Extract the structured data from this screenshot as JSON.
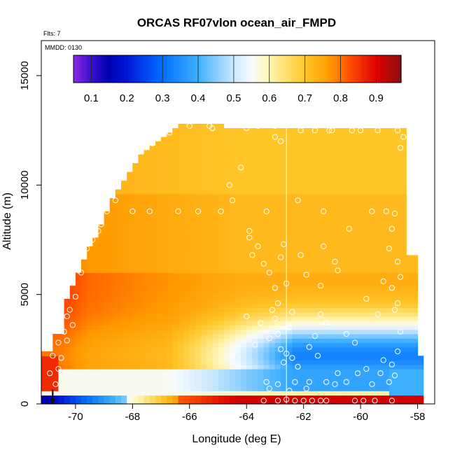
{
  "chart_data": {
    "type": "heatmap",
    "title": "ORCAS RF07vlon ocean_air_FMPD",
    "xlabel": "Longitude (deg E)",
    "ylabel": "Altitude (m)",
    "note_flights": "Flts: 7",
    "note_date": "MMDD: 0130",
    "xlim": [
      -71.2,
      -57.4
    ],
    "ylim": [
      0,
      16600
    ],
    "x_ticks": [
      -70,
      -68,
      -66,
      -64,
      -62,
      -60,
      -58
    ],
    "x_tick_labels": [
      "-70",
      "-68",
      "-66",
      "-64",
      "-62",
      "-60",
      "-58"
    ],
    "y_ticks": [
      0,
      5000,
      10000,
      15000
    ],
    "y_tick_labels": [
      "0",
      "5000",
      "10000",
      "15000"
    ],
    "colorbar": {
      "range": [
        0.05,
        0.97
      ],
      "ticks": [
        0.1,
        0.2,
        0.3,
        0.4,
        0.5,
        0.6,
        0.7,
        0.8,
        0.9
      ],
      "tick_labels": [
        "0.1",
        "0.2",
        "0.3",
        "0.4",
        "0.5",
        "0.6",
        "0.7",
        "0.8",
        "0.9"
      ],
      "stops": [
        {
          "v": 0.05,
          "c": "#8a2be2"
        },
        {
          "v": 0.1,
          "c": "#3a0fd0"
        },
        {
          "v": 0.15,
          "c": "#0000b0"
        },
        {
          "v": 0.2,
          "c": "#0018d8"
        },
        {
          "v": 0.3,
          "c": "#0070ff"
        },
        {
          "v": 0.4,
          "c": "#3fb0ff"
        },
        {
          "v": 0.5,
          "c": "#cce8ff"
        },
        {
          "v": 0.55,
          "c": "#f8fbff"
        },
        {
          "v": 0.6,
          "c": "#fff5b0"
        },
        {
          "v": 0.7,
          "c": "#ffc628"
        },
        {
          "v": 0.77,
          "c": "#ff9a00"
        },
        {
          "v": 0.83,
          "c": "#ff4a00"
        },
        {
          "v": 0.9,
          "c": "#e00000"
        },
        {
          "v": 0.97,
          "c": "#8b0f0f"
        }
      ]
    },
    "vertical_line_x": -62.6,
    "arrow_x": -70.8,
    "field_description": "Gridded FMPD values; warmer (0.75-0.85) toward west and mid-altitudes, ~0.7 aloft, white/blue (0.3-0.55) low over east, red (~0.9) near surface east of -66",
    "observation_points": [
      [
        -69.8,
        6000
      ],
      [
        -69.9,
        6100
      ],
      [
        -70.0,
        4900
      ],
      [
        -70.2,
        4300
      ],
      [
        -70.3,
        4000
      ],
      [
        -70.1,
        3600
      ],
      [
        -70.4,
        3300
      ],
      [
        -70.6,
        2800
      ],
      [
        -70.3,
        2900
      ],
      [
        -70.8,
        2200
      ],
      [
        -70.5,
        2100
      ],
      [
        -70.6,
        1600
      ],
      [
        -70.9,
        1400
      ],
      [
        -70.7,
        900
      ],
      [
        -69.6,
        7100
      ],
      [
        -69.4,
        7500
      ],
      [
        -69.2,
        7900
      ],
      [
        -69.1,
        8200
      ],
      [
        -68.9,
        8800
      ],
      [
        -68.6,
        9300
      ],
      [
        -68.2,
        10800
      ],
      [
        -67.6,
        12200
      ],
      [
        -67.3,
        11900
      ],
      [
        -66.0,
        12700
      ],
      [
        -65.3,
        12700
      ],
      [
        -64.2,
        10800
      ],
      [
        -63.6,
        12700
      ],
      [
        -63.0,
        12700
      ],
      [
        -62.1,
        12500
      ],
      [
        -61.6,
        12500
      ],
      [
        -61.0,
        12500
      ],
      [
        -60.3,
        12500
      ],
      [
        -59.4,
        12500
      ],
      [
        -58.7,
        12500
      ],
      [
        -58.5,
        12200
      ],
      [
        -58.6,
        11700
      ],
      [
        -62.8,
        12000
      ],
      [
        -68.0,
        8800
      ],
      [
        -67.4,
        8800
      ],
      [
        -66.4,
        8800
      ],
      [
        -65.7,
        8800
      ],
      [
        -64.9,
        8800
      ],
      [
        -64.5,
        9300
      ],
      [
        -63.3,
        8800
      ],
      [
        -62.2,
        9300
      ],
      [
        -61.3,
        8800
      ],
      [
        -60.4,
        8000
      ],
      [
        -59.6,
        8800
      ],
      [
        -59.1,
        8800
      ],
      [
        -58.8,
        8700
      ],
      [
        -58.9,
        8000
      ],
      [
        -59.0,
        7100
      ],
      [
        -60.8,
        6100
      ],
      [
        -60.9,
        6500
      ],
      [
        -61.3,
        7200
      ],
      [
        -63.9,
        7600
      ],
      [
        -63.9,
        7900
      ],
      [
        -63.4,
        6400
      ],
      [
        -63.2,
        6000
      ],
      [
        -63.0,
        5300
      ],
      [
        -62.8,
        6700
      ],
      [
        -62.7,
        7300
      ],
      [
        -63.6,
        7200
      ],
      [
        -63.8,
        6800
      ],
      [
        -62.9,
        4600
      ],
      [
        -63.1,
        4300
      ],
      [
        -63.0,
        3900
      ],
      [
        -62.5,
        3500
      ],
      [
        -62.9,
        3200
      ],
      [
        -62.8,
        2500
      ],
      [
        -62.6,
        2300
      ],
      [
        -62.7,
        1900
      ],
      [
        -62.4,
        2100
      ],
      [
        -62.2,
        1700
      ],
      [
        -61.8,
        2600
      ],
      [
        -61.6,
        3100
      ],
      [
        -61.4,
        4100
      ],
      [
        -61.2,
        3700
      ],
      [
        -61.5,
        2200
      ],
      [
        -60.8,
        1400
      ],
      [
        -60.5,
        1000
      ],
      [
        -60.1,
        1400
      ],
      [
        -59.6,
        900
      ],
      [
        -59.3,
        1400
      ],
      [
        -59.0,
        1000
      ],
      [
        -58.8,
        1300
      ],
      [
        -58.9,
        1800
      ],
      [
        -58.7,
        2400
      ],
      [
        -58.6,
        3300
      ],
      [
        -58.8,
        4300
      ],
      [
        -58.7,
        4600
      ],
      [
        -58.9,
        5300
      ],
      [
        -58.6,
        5800
      ],
      [
        -58.7,
        6500
      ],
      [
        -63.3,
        1000
      ],
      [
        -62.9,
        900
      ],
      [
        -62.3,
        1000
      ],
      [
        -61.8,
        1000
      ],
      [
        -61.2,
        1000
      ],
      [
        -60.9,
        900
      ],
      [
        -62.6,
        200
      ],
      [
        -62.3,
        150
      ],
      [
        -62.0,
        150
      ],
      [
        -61.7,
        150
      ],
      [
        -61.4,
        150
      ],
      [
        -61.2,
        150
      ],
      [
        -60.2,
        150
      ],
      [
        -59.9,
        150
      ],
      [
        -59.5,
        150
      ],
      [
        -58.9,
        150
      ],
      [
        -62.9,
        150
      ],
      [
        -63.4,
        150
      ],
      [
        -63.2,
        700
      ],
      [
        -62.5,
        600
      ],
      [
        -61.9,
        700
      ],
      [
        -60.5,
        3200
      ],
      [
        -60.2,
        2800
      ],
      [
        -59.8,
        1600
      ],
      [
        -59.2,
        2000
      ],
      [
        -64.0,
        4000
      ],
      [
        -63.5,
        3700
      ],
      [
        -63.2,
        3000
      ],
      [
        -63.7,
        2700
      ],
      [
        -64.4,
        2400
      ],
      [
        -62.4,
        4200
      ],
      [
        -59.8,
        4800
      ],
      [
        -59.4,
        4100
      ],
      [
        -59.2,
        5600
      ],
      [
        -61.4,
        5400
      ],
      [
        -61.9,
        5900
      ],
      [
        -62.6,
        5500
      ],
      [
        -62.1,
        6800
      ],
      [
        -64.6,
        10000
      ],
      [
        -65.2,
        12600
      ],
      [
        -60.0,
        12500
      ],
      [
        -61.1,
        12500
      ],
      [
        -68.6,
        10100
      ],
      [
        -67.9,
        11500
      ],
      [
        -66.7,
        12400
      ],
      [
        -64.0,
        12600
      ],
      [
        -63.0,
        12200
      ]
    ]
  }
}
